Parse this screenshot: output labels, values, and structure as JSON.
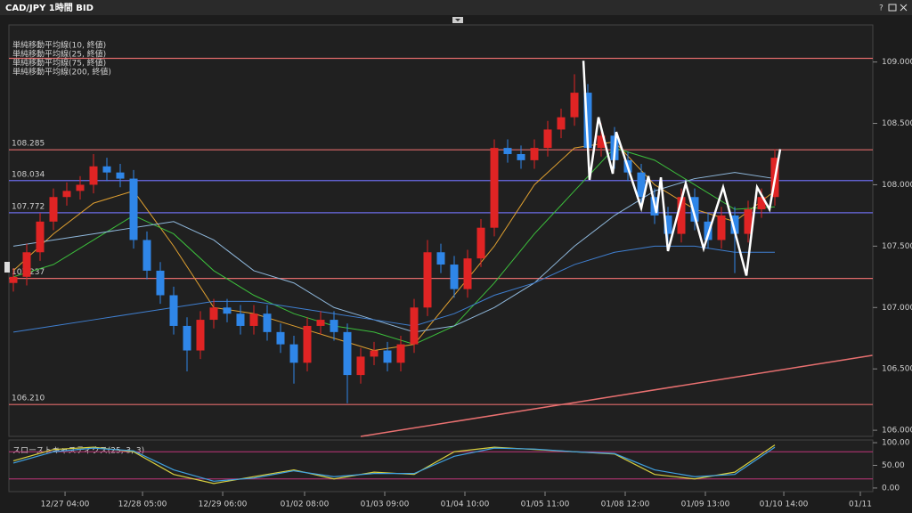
{
  "chart_data": {
    "type": "candlestick",
    "title": "CAD/JPY 1時間 BID",
    "help": "?",
    "xlim": [
      -1,
      64.3
    ],
    "ylim": [
      105.95,
      109.36
    ],
    "yticks": [
      {
        "value": 109,
        "label": "109.000"
      },
      {
        "value": 108.5,
        "label": "108.500"
      },
      {
        "value": 108,
        "label": "108.000"
      },
      {
        "value": 107.5,
        "label": "107.500"
      },
      {
        "value": 107,
        "label": "107.000"
      },
      {
        "value": 106.5,
        "label": "106.500"
      },
      {
        "value": 106,
        "label": "106.000"
      }
    ],
    "xticks": [
      {
        "value": 3.87,
        "label": "12/27 04:00"
      },
      {
        "value": 9.67,
        "label": "12/28 05:00"
      },
      {
        "value": 15.67,
        "label": "12/29 06:00"
      },
      {
        "value": 21.8,
        "label": "01/02 08:00"
      },
      {
        "value": 27.8,
        "label": "01/03 09:00"
      },
      {
        "value": 33.8,
        "label": "01/04 10:00"
      },
      {
        "value": 39.8,
        "label": "01/05 11:00"
      },
      {
        "value": 45.8,
        "label": "01/08 12:00"
      },
      {
        "value": 51.8,
        "label": "01/09 13:00"
      },
      {
        "value": 57.67,
        "label": "01/10 14:00"
      },
      {
        "value": 63.4,
        "label": "01/11"
      }
    ],
    "up_color": "#e02424",
    "down_color": "#2f86e8",
    "candles": {
      "open": [
        107.2,
        107.25,
        107.45,
        107.7,
        107.9,
        107.95,
        108.0,
        108.15,
        108.1,
        108.05,
        107.55,
        107.3,
        107.1,
        106.85,
        106.65,
        106.9,
        107.0,
        106.95,
        106.85,
        106.95,
        106.8,
        106.7,
        106.55,
        106.85,
        106.9,
        106.8,
        106.45,
        106.6,
        106.65,
        106.55,
        106.7,
        107.0,
        107.45,
        107.35,
        107.15,
        107.4,
        107.65,
        108.3,
        108.25,
        108.2,
        108.3,
        108.45,
        108.55,
        108.75,
        108.3,
        108.4,
        108.2,
        108.1,
        107.9,
        107.75,
        107.6,
        107.9,
        107.7,
        107.55,
        107.75,
        107.6,
        107.8,
        107.9
      ],
      "high": [
        107.32,
        107.52,
        107.77,
        107.97,
        108.02,
        108.07,
        108.25,
        108.22,
        108.17,
        108.12,
        107.62,
        107.37,
        107.17,
        106.92,
        106.97,
        107.07,
        107.07,
        107.02,
        107.02,
        107.02,
        106.87,
        106.77,
        106.92,
        106.97,
        106.97,
        106.87,
        106.67,
        106.72,
        106.72,
        106.77,
        107.07,
        107.55,
        107.52,
        107.42,
        107.47,
        107.72,
        108.37,
        108.37,
        108.32,
        108.37,
        108.52,
        108.62,
        108.9,
        108.82,
        108.5,
        108.47,
        108.27,
        108.17,
        107.97,
        107.82,
        107.97,
        107.97,
        107.77,
        107.82,
        107.82,
        107.87,
        107.97,
        108.29
      ],
      "low": [
        107.13,
        107.18,
        107.38,
        107.63,
        107.83,
        107.88,
        107.93,
        108.03,
        107.98,
        107.48,
        107.23,
        107.03,
        106.78,
        106.48,
        106.58,
        106.83,
        106.88,
        106.78,
        106.78,
        106.73,
        106.63,
        106.38,
        106.48,
        106.78,
        106.73,
        106.22,
        106.38,
        106.53,
        106.48,
        106.48,
        106.63,
        106.93,
        107.28,
        107.08,
        107.08,
        107.33,
        107.58,
        108.18,
        108.13,
        108.13,
        108.23,
        108.38,
        108.48,
        108.23,
        108.23,
        108.13,
        108.03,
        107.83,
        107.68,
        107.48,
        107.53,
        107.63,
        107.48,
        107.48,
        107.28,
        107.53,
        107.73,
        107.83
      ],
      "close": [
        107.25,
        107.45,
        107.7,
        107.9,
        107.95,
        108.0,
        108.15,
        108.1,
        108.05,
        107.55,
        107.3,
        107.1,
        106.85,
        106.65,
        106.9,
        107.0,
        106.95,
        106.85,
        106.95,
        106.8,
        106.7,
        106.55,
        106.85,
        106.9,
        106.8,
        106.45,
        106.6,
        106.65,
        106.55,
        106.7,
        107.0,
        107.45,
        107.35,
        107.15,
        107.4,
        107.65,
        108.3,
        108.25,
        108.2,
        108.3,
        108.45,
        108.55,
        108.75,
        108.3,
        108.4,
        108.2,
        108.1,
        107.9,
        107.75,
        107.6,
        107.9,
        107.7,
        107.55,
        107.75,
        107.6,
        107.8,
        107.9,
        108.22
      ]
    },
    "ma_x": [
      0,
      3,
      6,
      9,
      12,
      15,
      18,
      21,
      24,
      27,
      30,
      33,
      36,
      39,
      42,
      45,
      48,
      51,
      54,
      57
    ],
    "lines": [
      {
        "name": "単純移動平均線(10, 終値)",
        "color": "#e0a030",
        "values": [
          107.3,
          107.6,
          107.85,
          107.95,
          107.5,
          107.0,
          106.95,
          106.85,
          106.75,
          106.65,
          106.7,
          107.1,
          107.5,
          108.0,
          108.3,
          108.35,
          108.0,
          107.8,
          107.7,
          107.95
        ]
      },
      {
        "name": "単純移動平均線(25, 終値)",
        "color": "#3cbf3c",
        "values": [
          107.25,
          107.35,
          107.55,
          107.75,
          107.6,
          107.3,
          107.1,
          106.95,
          106.85,
          106.8,
          106.7,
          106.85,
          107.2,
          107.6,
          107.95,
          108.3,
          108.2,
          108.0,
          107.8,
          107.82
        ]
      },
      {
        "name": "単純移動平均線(75, 終値)",
        "color": "#8fb8dc",
        "values": [
          107.5,
          107.55,
          107.6,
          107.65,
          107.7,
          107.55,
          107.3,
          107.2,
          107.0,
          106.9,
          106.8,
          106.85,
          107.0,
          107.2,
          107.5,
          107.75,
          107.95,
          108.05,
          108.1,
          108.05
        ]
      },
      {
        "name": "単純移動平均線(200, 終値)",
        "color": "#3f7fd0",
        "values": [
          106.8,
          106.85,
          106.9,
          106.95,
          107.0,
          107.05,
          107.05,
          107.0,
          106.95,
          106.9,
          106.85,
          106.95,
          107.1,
          107.2,
          107.35,
          107.45,
          107.5,
          107.5,
          107.45,
          107.45
        ]
      }
    ],
    "levels": [
      {
        "value": 109.03,
        "color": "#e06a6a"
      },
      {
        "value": 108.285,
        "label": "108.285",
        "color": "#e06a6a"
      },
      {
        "value": 108.034,
        "label": "108.034",
        "color": "#6a6ae6"
      },
      {
        "value": 107.772,
        "label": "107.772",
        "color": "#6a6ae6"
      },
      {
        "value": 107.237,
        "label": "107.237",
        "color": "#e06a6a"
      },
      {
        "value": 106.21,
        "label": "106.210",
        "color": "#e06a6a"
      }
    ],
    "trendline": {
      "x": [
        26,
        64.3
      ],
      "y": [
        105.95,
        106.61
      ],
      "color": "#e87070"
    },
    "zigzag": {
      "color": "#ffffff",
      "x": [
        42.67,
        43.13,
        43.8,
        44.87,
        45.13,
        47,
        47.53,
        48.13,
        48.47,
        49,
        50.33,
        51.67,
        53.13,
        54.87,
        55.67,
        56.6,
        57.4
      ],
      "y": [
        109.01,
        108.04,
        108.55,
        108.09,
        108.43,
        107.81,
        108.07,
        107.77,
        108.06,
        107.46,
        108.01,
        107.48,
        107.98,
        107.26,
        107.98,
        107.8,
        108.29
      ]
    },
    "indicator": {
      "name": "スローストキャスティクス(25, 3, 3)",
      "ylim": [
        -8,
        106
      ],
      "yticks": [
        {
          "value": 100,
          "label": "100.00"
        },
        {
          "value": 50,
          "label": "50.00"
        },
        {
          "value": 0,
          "label": "0.00"
        }
      ],
      "levels": [
        80,
        20
      ],
      "level_color": "#c0357a",
      "series": [
        {
          "color": "#d8d040",
          "values": [
            60,
            85,
            90,
            80,
            30,
            10,
            25,
            40,
            20,
            35,
            30,
            80,
            90,
            85,
            80,
            75,
            30,
            20,
            35,
            95
          ]
        },
        {
          "color": "#3fa0e0",
          "values": [
            55,
            80,
            88,
            82,
            40,
            15,
            22,
            38,
            25,
            32,
            32,
            70,
            88,
            86,
            80,
            76,
            40,
            25,
            30,
            90
          ]
        }
      ]
    }
  }
}
